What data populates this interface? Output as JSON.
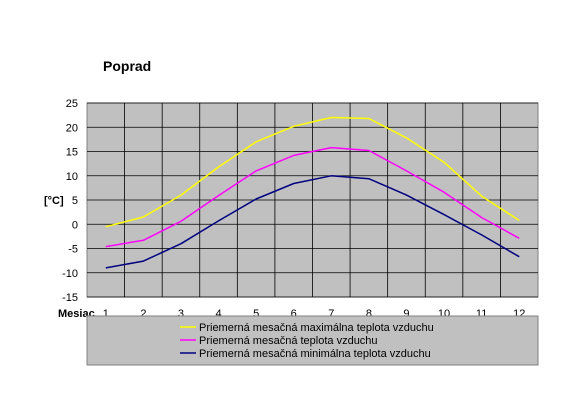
{
  "chart_data": {
    "type": "line",
    "title": "Poprad",
    "ylabel": "[°C]",
    "xlabel": "Mesiac",
    "categories": [
      "1",
      "2",
      "3",
      "4",
      "5",
      "6",
      "7",
      "8",
      "9",
      "10",
      "11",
      "12"
    ],
    "ylim": [
      -15,
      25
    ],
    "yticks": [
      -15,
      -10,
      -5,
      0,
      5,
      10,
      15,
      20,
      25
    ],
    "grid": true,
    "legend_position": "bottom",
    "series": [
      {
        "name": "Priemerná mesačná maximálna teplota vzduchu",
        "color": "#ffff00",
        "values": [
          -0.5,
          1.5,
          6.0,
          11.8,
          17.0,
          20.2,
          22.0,
          21.8,
          17.8,
          12.8,
          5.8,
          0.8
        ]
      },
      {
        "name": "Priemerná mesačná teplota vzduchu",
        "color": "#ff00ff",
        "values": [
          -4.6,
          -3.3,
          0.6,
          5.9,
          11.0,
          14.2,
          15.8,
          15.2,
          11.0,
          6.6,
          1.4,
          -2.9
        ]
      },
      {
        "name": "Priemerná mesačná minimálna teplota vzduchu",
        "color": "#000080",
        "values": [
          -9.0,
          -7.6,
          -4.0,
          0.7,
          5.2,
          8.4,
          10.0,
          9.4,
          6.0,
          2.0,
          -2.2,
          -6.7
        ]
      }
    ]
  }
}
